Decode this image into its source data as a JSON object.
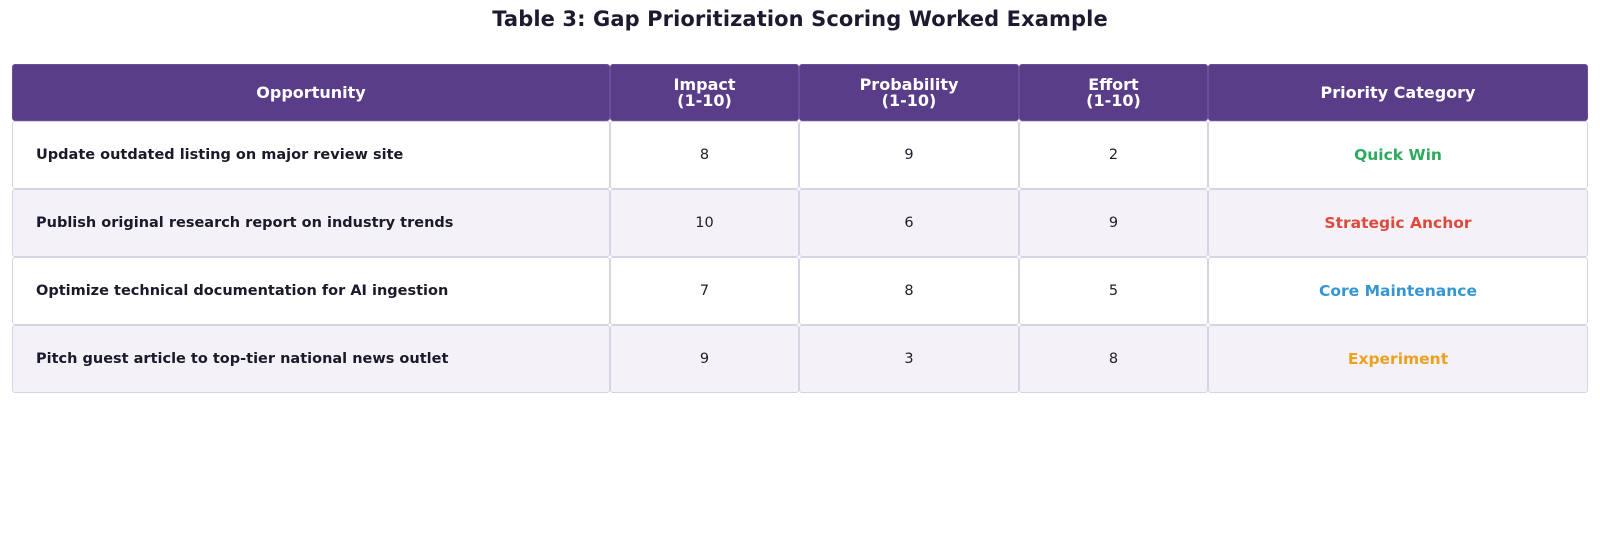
{
  "title": "Table 3: Gap Prioritization Scoring Worked Example",
  "chart_data": {
    "type": "table",
    "title": "Table 3: Gap Prioritization Scoring Worked Example",
    "columns": [
      "Opportunity",
      "Impact\n(1-10)",
      "Probability\n(1-10)",
      "Effort\n(1-10)",
      "Priority Category"
    ],
    "rows": [
      {
        "opportunity": "Update outdated listing on major review site",
        "impact": "8",
        "probability": "9",
        "effort": "2",
        "category": "Quick Win",
        "category_color": "#2eaa5f"
      },
      {
        "opportunity": "Publish original research report on industry trends",
        "impact": "10",
        "probability": "6",
        "effort": "9",
        "category": "Strategic Anchor",
        "category_color": "#dd4a3c"
      },
      {
        "opportunity": "Optimize technical documentation for AI ingestion",
        "impact": "7",
        "probability": "8",
        "effort": "5",
        "category": "Core Maintenance",
        "category_color": "#3596d3"
      },
      {
        "opportunity": "Pitch guest article to top-tier national news outlet",
        "impact": "9",
        "probability": "3",
        "effort": "8",
        "category": "Experiment",
        "category_color": "#eea020"
      }
    ]
  },
  "colors": {
    "header_bg": "#5a3d89",
    "header_text": "#ffffff",
    "row_alt_bg": "#f4f1f9",
    "border": "#d7d3e3"
  }
}
